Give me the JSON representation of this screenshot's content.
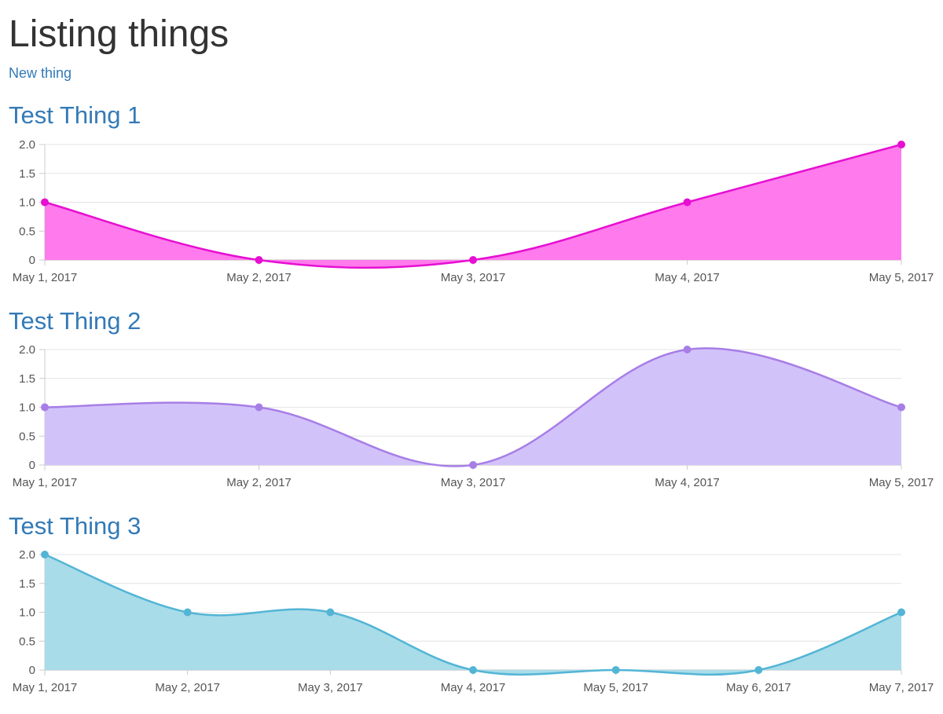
{
  "page": {
    "title": "Listing things",
    "new_link": "New thing"
  },
  "things": [
    {
      "title": "Test Thing 1"
    },
    {
      "title": "Test Thing 2"
    },
    {
      "title": "Test Thing 3"
    }
  ],
  "chart_data": [
    {
      "type": "area",
      "title": "Test Thing 1",
      "x": [
        "May 1, 2017",
        "May 2, 2017",
        "May 3, 2017",
        "May 4, 2017",
        "May 5, 2017"
      ],
      "series": [
        {
          "values": [
            1,
            0,
            0,
            1,
            2
          ],
          "line_color": "#e60fd2",
          "fill_color": "#ff7aec"
        }
      ],
      "ylim": [
        0,
        2
      ],
      "yticks": [
        "2.0",
        "1.5",
        "1.0",
        "0.5",
        "0"
      ],
      "grid": true
    },
    {
      "type": "area",
      "title": "Test Thing 2",
      "x": [
        "May 1, 2017",
        "May 2, 2017",
        "May 3, 2017",
        "May 4, 2017",
        "May 5, 2017"
      ],
      "series": [
        {
          "values": [
            1,
            1,
            0,
            2,
            1
          ],
          "line_color": "#a77ee6",
          "fill_color": "#d2c2fa"
        }
      ],
      "ylim": [
        0,
        2
      ],
      "yticks": [
        "2.0",
        "1.5",
        "1.0",
        "0.5",
        "0"
      ],
      "grid": true
    },
    {
      "type": "area",
      "title": "Test Thing 3",
      "x": [
        "May 1, 2017",
        "May 2, 2017",
        "May 3, 2017",
        "May 4, 2017",
        "May 5, 2017",
        "May 6, 2017",
        "May 7, 2017"
      ],
      "series": [
        {
          "values": [
            2,
            1,
            1,
            0,
            0,
            0,
            1
          ],
          "line_color": "#53b5d5",
          "fill_color": "#a8dce9"
        }
      ],
      "ylim": [
        0,
        2
      ],
      "yticks": [
        "2.0",
        "1.5",
        "1.0",
        "0.5",
        "0"
      ],
      "grid": true
    }
  ]
}
